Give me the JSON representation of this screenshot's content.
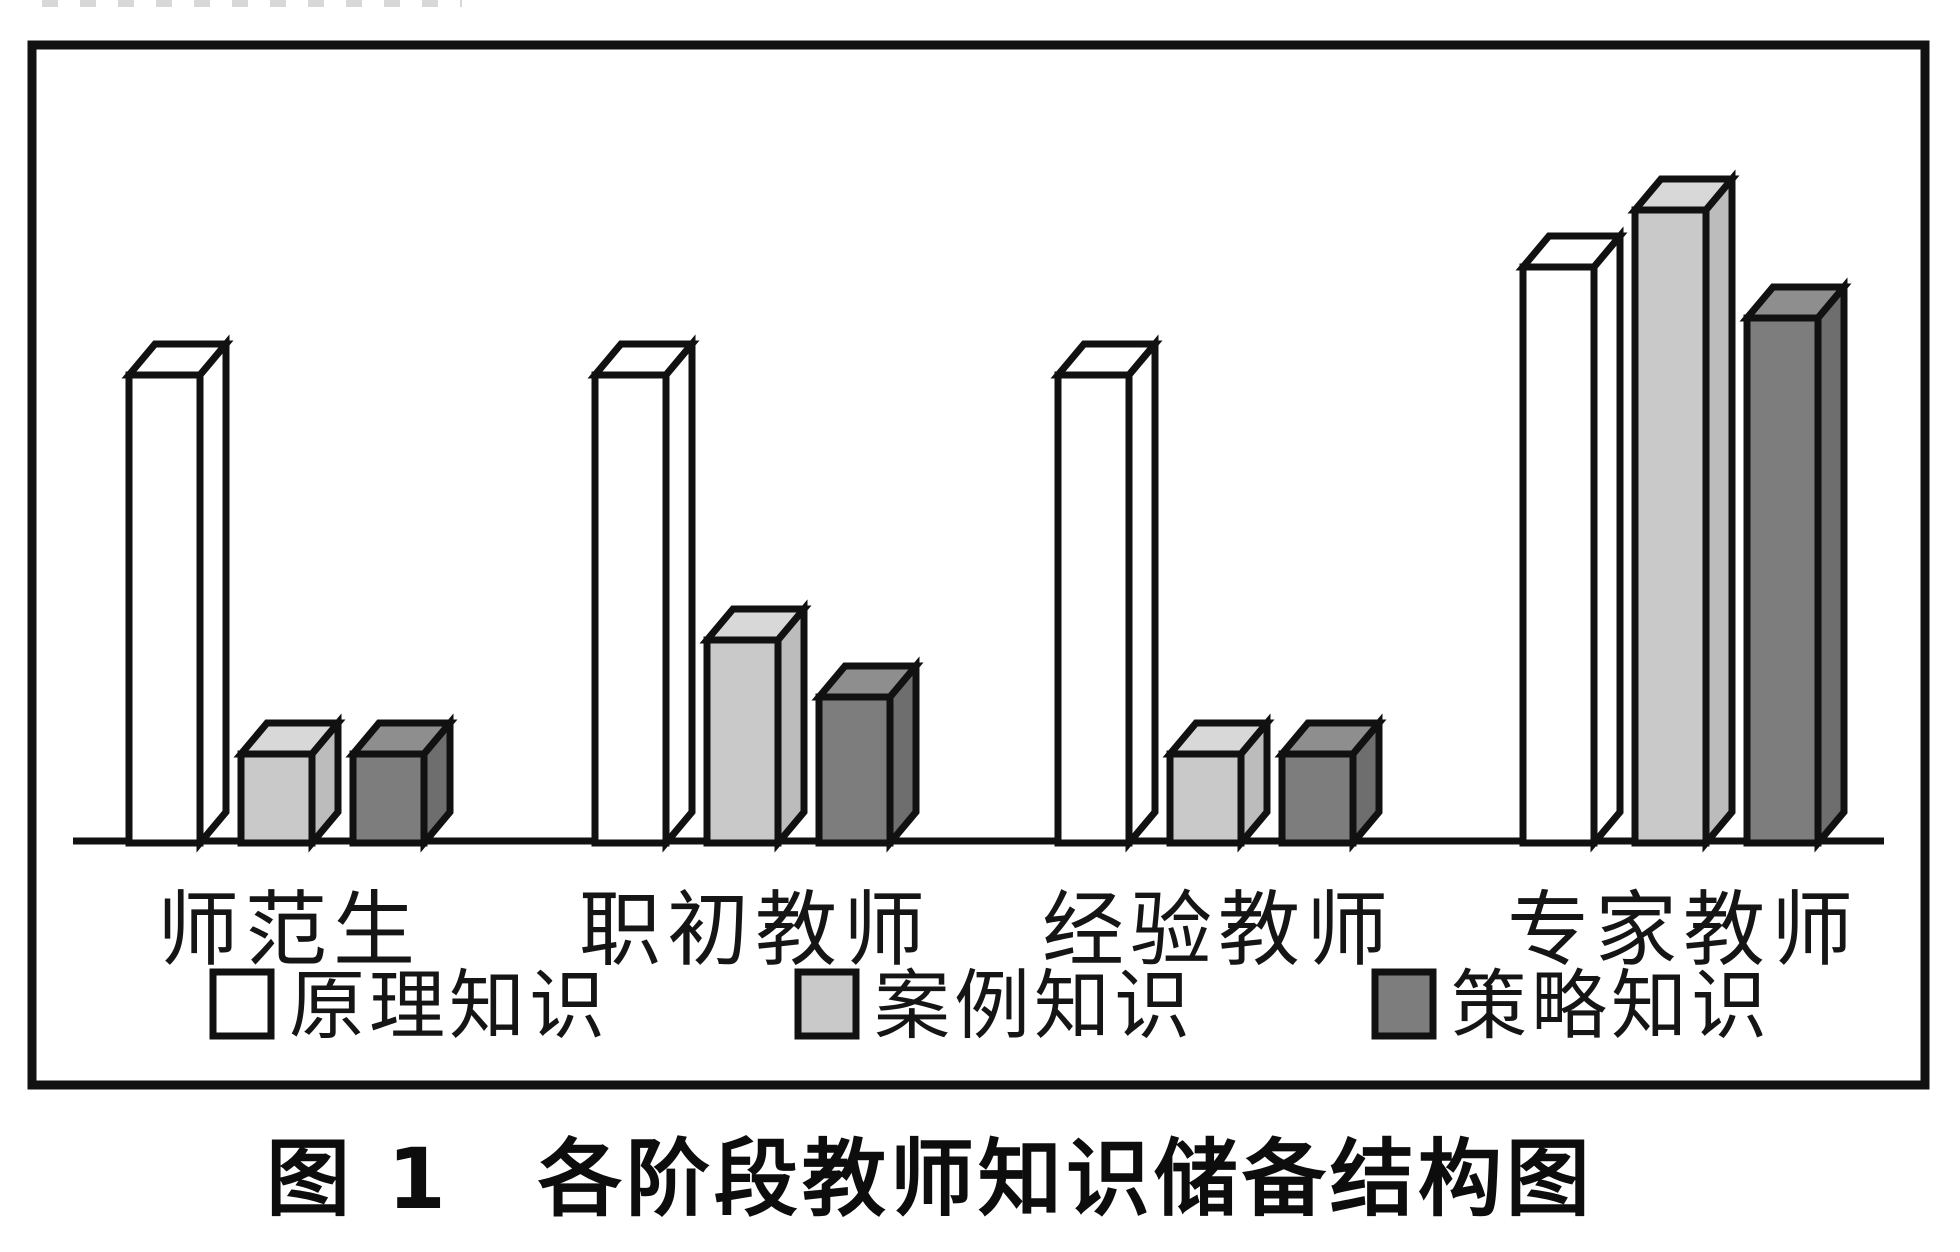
{
  "figure": {
    "caption": "图 1　各阶段教师知识储备结构图"
  },
  "chart_data": {
    "type": "bar",
    "style": "3d-column",
    "title": "图 1　各阶段教师知识储备结构图",
    "categories": [
      "师范生",
      "职初教师",
      "经验教师",
      "专家教师"
    ],
    "series": [
      {
        "name": "原理知识",
        "color_front": "#ffffff",
        "color_top": "#ffffff",
        "color_side": "#ffffff",
        "values": [
          74,
          74,
          74,
          91
        ]
      },
      {
        "name": "案例知识",
        "color_front": "#c9c9c9",
        "color_top": "#d8d8d8",
        "color_side": "#bcbcbc",
        "values": [
          14,
          32,
          14,
          100
        ]
      },
      {
        "name": "策略知识",
        "color_front": "#7d7d7d",
        "color_top": "#8e8e8e",
        "color_side": "#6e6e6e",
        "values": [
          14,
          23,
          14,
          83
        ]
      }
    ],
    "value_note": "chart has no numeric axis; values are relative bar heights with tallest bar (专家教师·案例知识) = 100",
    "xlabel": "",
    "ylabel": "",
    "grid": false,
    "legend_position": "bottom-inside-frame",
    "frame_color": "#111111",
    "outline_color": "#111111"
  }
}
